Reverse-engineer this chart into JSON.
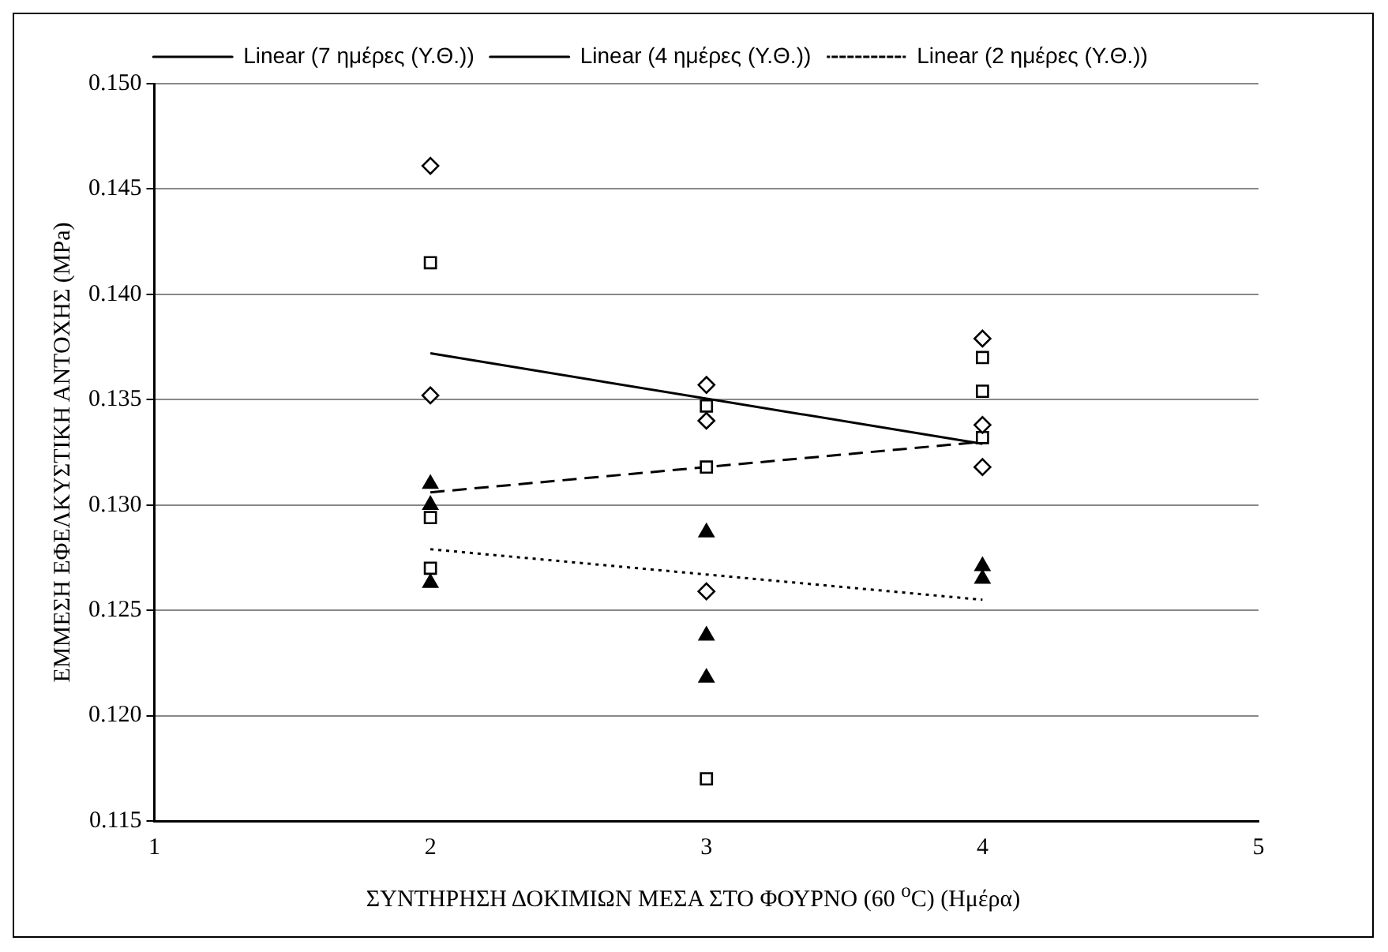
{
  "chart_data": {
    "type": "scatter",
    "xlabel": "ΣΥΝΤΗΡΗΣΗ ΔΟΚΙΜΙΩΝ ΜΕΣΑ ΣΤΟ ΦΟΥΡΝΟ (60 $^{o}$C) (Ημέρα)",
    "ylabel": "ΕΜΜΕΣΗ ΕΦΕΛΚΥΣΤΙΚΗ ΑΝΤΟΧΗΣ (MPa)",
    "xlim": [
      1,
      5
    ],
    "xticks": [
      1,
      2,
      3,
      4,
      5
    ],
    "ylim": [
      0.115,
      0.15
    ],
    "yticks": [
      0.115,
      {
        "value": 0.12,
        "label": "0.120"
      },
      0.125,
      {
        "value": 0.13,
        "label": "0.130"
      },
      0.135,
      {
        "value": 0.14,
        "label": "0.140"
      },
      0.145,
      {
        "value": 0.15,
        "label": "0.150"
      }
    ],
    "grid": "y",
    "legend": "top",
    "series": [
      {
        "marker": "diamond",
        "color": "#000000",
        "x": [
          2,
          2,
          3,
          3,
          3,
          4,
          4,
          4
        ],
        "values": [
          0.1461,
          0.1352,
          0.1357,
          0.134,
          0.1259,
          0.1379,
          0.1338,
          0.1318
        ]
      },
      {
        "marker": "square",
        "color": "#000000",
        "x": [
          2,
          2,
          2,
          3,
          3,
          3,
          4,
          4,
          4
        ],
        "values": [
          0.1415,
          0.1294,
          0.127,
          0.1347,
          0.1318,
          0.117,
          0.137,
          0.1354,
          0.1332
        ]
      },
      {
        "marker": "triangle",
        "color": "#000000",
        "x": [
          2,
          2,
          2,
          3,
          3,
          3,
          4,
          4
        ],
        "values": [
          0.131,
          0.13,
          0.1263,
          0.1287,
          0.1238,
          0.1218,
          0.1271,
          0.1265
        ]
      },
      {
        "type": "line",
        "name": "Linear (7 ημέρες (Υ.Θ.))",
        "line_style": "solid",
        "marker": "none",
        "color": "#000000",
        "x": [
          2,
          4
        ],
        "values": [
          0.1372,
          0.1329
        ]
      },
      {
        "type": "line",
        "name": "Linear (4 ημέρες (Υ.Θ.))",
        "line_style": "dashed",
        "marker": "none",
        "color": "#000000",
        "x": [
          2,
          4
        ],
        "values": [
          0.1306,
          0.133
        ]
      },
      {
        "type": "line",
        "name": "Linear (2 ημέρες (Υ.Θ.))",
        "line_style": "dotted",
        "marker": "none",
        "color": "#000000",
        "x": [
          2,
          4
        ],
        "values": [
          0.1279,
          0.1255
        ]
      }
    ]
  }
}
